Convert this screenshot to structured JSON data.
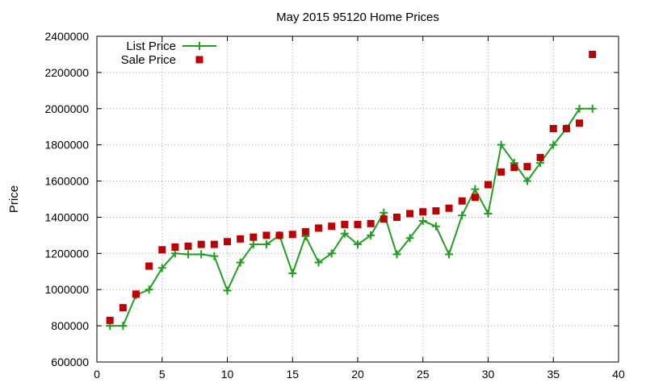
{
  "chart_data": {
    "type": "line",
    "title": "May 2015 95120 Home Prices",
    "xlabel": "",
    "ylabel": "Price",
    "xlim": [
      0,
      40
    ],
    "ylim": [
      600000,
      2400000
    ],
    "x_ticks": [
      "0",
      "5",
      "10",
      "15",
      "20",
      "25",
      "30",
      "35",
      "40"
    ],
    "y_ticks": [
      "600000",
      "800000",
      "1000000",
      "1200000",
      "1400000",
      "1600000",
      "1800000",
      "2000000",
      "2200000",
      "2400000"
    ],
    "grid": true,
    "legend_position": "top-left",
    "series": [
      {
        "name": "List Price",
        "style": "line-with-plus-markers",
        "color": "#1fa01f",
        "points": [
          [
            1,
            800000
          ],
          [
            2,
            800000
          ],
          [
            3,
            970000
          ],
          [
            4,
            1000000
          ],
          [
            5,
            1120000
          ],
          [
            6,
            1200000
          ],
          [
            7,
            1195000
          ],
          [
            8,
            1195000
          ],
          [
            9,
            1185000
          ],
          [
            10,
            995000
          ],
          [
            11,
            1150000
          ],
          [
            12,
            1250000
          ],
          [
            13,
            1250000
          ],
          [
            14,
            1300000
          ],
          [
            15,
            1090000
          ],
          [
            16,
            1295000
          ],
          [
            17,
            1150000
          ],
          [
            18,
            1200000
          ],
          [
            19,
            1310000
          ],
          [
            20,
            1250000
          ],
          [
            21,
            1300000
          ],
          [
            22,
            1425000
          ],
          [
            23,
            1195000
          ],
          [
            24,
            1285000
          ],
          [
            25,
            1380000
          ],
          [
            26,
            1350000
          ],
          [
            27,
            1195000
          ],
          [
            28,
            1410000
          ],
          [
            29,
            1555000
          ],
          [
            30,
            1420000
          ],
          [
            31,
            1800000
          ],
          [
            32,
            1700000
          ],
          [
            33,
            1600000
          ],
          [
            34,
            1700000
          ],
          [
            35,
            1800000
          ],
          [
            36,
            1890000
          ],
          [
            37,
            2000000
          ],
          [
            38,
            2000000
          ]
        ]
      },
      {
        "name": "Sale Price",
        "style": "square-markers",
        "color": "#c00000",
        "points": [
          [
            1,
            830000
          ],
          [
            2,
            900000
          ],
          [
            3,
            975000
          ],
          [
            4,
            1130000
          ],
          [
            5,
            1220000
          ],
          [
            6,
            1235000
          ],
          [
            7,
            1240000
          ],
          [
            8,
            1250000
          ],
          [
            9,
            1250000
          ],
          [
            10,
            1265000
          ],
          [
            11,
            1280000
          ],
          [
            12,
            1290000
          ],
          [
            13,
            1300000
          ],
          [
            14,
            1300000
          ],
          [
            15,
            1305000
          ],
          [
            16,
            1320000
          ],
          [
            17,
            1340000
          ],
          [
            18,
            1350000
          ],
          [
            19,
            1360000
          ],
          [
            20,
            1360000
          ],
          [
            21,
            1365000
          ],
          [
            22,
            1390000
          ],
          [
            23,
            1400000
          ],
          [
            24,
            1420000
          ],
          [
            25,
            1430000
          ],
          [
            26,
            1435000
          ],
          [
            27,
            1450000
          ],
          [
            28,
            1490000
          ],
          [
            29,
            1510000
          ],
          [
            30,
            1580000
          ],
          [
            31,
            1650000
          ],
          [
            32,
            1675000
          ],
          [
            33,
            1680000
          ],
          [
            34,
            1730000
          ],
          [
            35,
            1890000
          ],
          [
            36,
            1890000
          ],
          [
            37,
            1920000
          ],
          [
            38,
            2300000
          ]
        ]
      }
    ]
  }
}
